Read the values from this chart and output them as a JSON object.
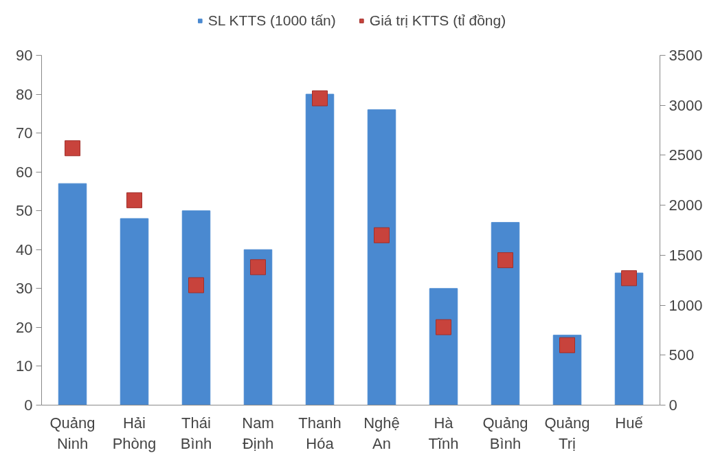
{
  "chart_data": {
    "type": "bar",
    "categories": [
      "Quảng Ninh",
      "Hải Phòng",
      "Thái Bình",
      "Nam Định",
      "Thanh Hóa",
      "Nghệ An",
      "Hà Tĩnh",
      "Quảng Bình",
      "Quảng Trị",
      "Huế"
    ],
    "series": [
      {
        "name": "SL KTTS (1000 tấn)",
        "color": "#4a89d0",
        "values": [
          57,
          48,
          50,
          40,
          80,
          76,
          30,
          47,
          18,
          34
        ]
      },
      {
        "name": "Giá trị KTTS (tỉ đồng)",
        "type": "scatter",
        "axis": "y2",
        "color": "#c8433c",
        "values": [
          2570,
          2050,
          1200,
          1380,
          3070,
          1700,
          780,
          1450,
          600,
          1270
        ]
      }
    ],
    "ylim": [
      0,
      90
    ],
    "yticks": [
      0,
      10,
      20,
      30,
      40,
      50,
      60,
      70,
      80,
      90
    ],
    "y2lim": [
      0,
      3500
    ],
    "y2ticks": [
      0,
      500,
      1000,
      1500,
      2000,
      2500,
      3000,
      3500
    ],
    "grid": false,
    "legend": "top",
    "marker": "square"
  }
}
